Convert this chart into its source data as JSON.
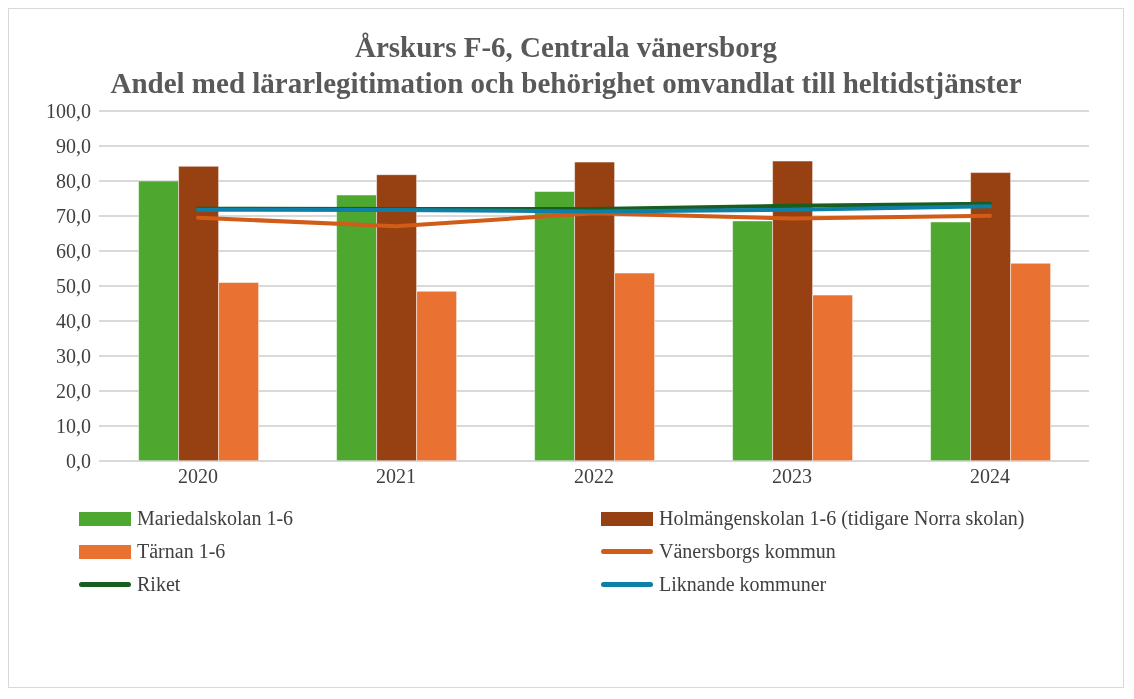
{
  "chart_data": {
    "type": "bar",
    "title": "Årskurs F-6, Centrala vänersborg\nAndel med lärarlegitimation och behörighet omvandlat till heltidstjänster",
    "categories": [
      "2020",
      "2021",
      "2022",
      "2023",
      "2024"
    ],
    "series": [
      {
        "name": "Mariedalskolan 1-6",
        "color": "#4ea72e",
        "values": [
          80.0,
          76.0,
          77.0,
          68.6,
          68.3
        ]
      },
      {
        "name": "Holmängenskolan 1-6 (tidigare Norra skolan)",
        "color": "#974011",
        "values": [
          84.2,
          81.8,
          85.4,
          85.7,
          82.4
        ]
      },
      {
        "name": "Tärnan 1-6",
        "color": "#e97132",
        "values": [
          51.0,
          48.5,
          53.7,
          47.4,
          56.5
        ]
      },
      {
        "name": "Vänersborgs kommun",
        "type": "line",
        "color": "#d05c17",
        "values": [
          69.5,
          67.1,
          70.8,
          69.3,
          70.1
        ]
      },
      {
        "name": "Riket",
        "type": "line",
        "color": "#195e1f",
        "values": [
          72.1,
          72.0,
          72.0,
          72.9,
          73.5
        ]
      },
      {
        "name": "Liknande kommuner",
        "type": "line",
        "color": "#0e7fa6",
        "values": [
          71.8,
          71.7,
          71.3,
          71.8,
          72.8
        ]
      }
    ],
    "ylim": [
      0,
      100
    ],
    "yticks": [
      {
        "value": 0,
        "label": "0,0"
      },
      {
        "value": 10,
        "label": "10,0"
      },
      {
        "value": 20,
        "label": "20,0"
      },
      {
        "value": 30,
        "label": "30,0"
      },
      {
        "value": 40,
        "label": "40,0"
      },
      {
        "value": 50,
        "label": "50,0"
      },
      {
        "value": 60,
        "label": "60,0"
      },
      {
        "value": 70,
        "label": "70,0"
      },
      {
        "value": 80,
        "label": "80,0"
      },
      {
        "value": 90,
        "label": "90,0"
      },
      {
        "value": 100,
        "label": "100,0"
      }
    ],
    "grid": "y",
    "legend": "bottom",
    "marker": "none",
    "line_style": "solid"
  }
}
